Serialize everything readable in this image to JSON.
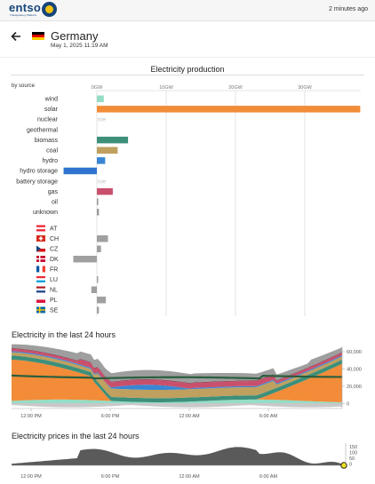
{
  "header": {
    "logo_text": "entso",
    "logo_tagline": "Transparency Platform",
    "updated": "2 minutes ago"
  },
  "zone": {
    "name": "Germany",
    "datetime": "May 1, 2025 11:19 AM",
    "flag": "de-flag"
  },
  "production": {
    "title": "Electricity production",
    "by_source_label": "by source",
    "ticks": [
      "0GW",
      "10GW",
      "20GW",
      "30GW"
    ],
    "nodata_label": "n/e",
    "sources": [
      {
        "name": "wind",
        "value": 1.0,
        "color": "#96dcc6"
      },
      {
        "name": "solar",
        "value": 38.0,
        "color": "#f28c38"
      },
      {
        "name": "nuclear",
        "value": null,
        "color": "#b0b0b0"
      },
      {
        "name": "geothermal",
        "value": 0,
        "color": "#b0b0b0"
      },
      {
        "name": "biomass",
        "value": 4.5,
        "color": "#3d8f7a"
      },
      {
        "name": "coal",
        "value": 3.0,
        "color": "#bfa05f"
      },
      {
        "name": "hydro",
        "value": 1.2,
        "color": "#3a86d4"
      },
      {
        "name": "hydro storage",
        "value": -4.8,
        "color": "#2f74d0"
      },
      {
        "name": "battery storage",
        "value": null,
        "color": "#b0b0b0"
      },
      {
        "name": "gas",
        "value": 2.3,
        "color": "#c9506c"
      },
      {
        "name": "oil",
        "value": 0.2,
        "color": "#9a9a9a"
      },
      {
        "name": "unknown",
        "value": 0.3,
        "color": "#9a9a9a"
      }
    ],
    "exchanges": [
      {
        "code": "AT",
        "value": 0,
        "flag": "at-flag"
      },
      {
        "code": "CH",
        "value": 1.6,
        "flag": "ch-flag"
      },
      {
        "code": "CZ",
        "value": 0.6,
        "flag": "cz-flag"
      },
      {
        "code": "DK",
        "value": -3.4,
        "flag": "dk-flag"
      },
      {
        "code": "FR",
        "value": 0,
        "flag": "fr-flag"
      },
      {
        "code": "LU",
        "value": 0.1,
        "flag": "lu-flag"
      },
      {
        "code": "NL",
        "value": -0.8,
        "flag": "nl-flag"
      },
      {
        "code": "PL",
        "value": 1.3,
        "flag": "pl-flag"
      },
      {
        "code": "SE",
        "value": 0.3,
        "flag": "se-flag"
      }
    ]
  },
  "history": {
    "title": "Electricity in the last 24 hours",
    "x_labels": [
      "12:00 PM",
      "6:00 PM",
      "12:00 AM",
      "6:00 AM"
    ],
    "y_labels": [
      "60,000",
      "40,000",
      "20,000",
      "0"
    ],
    "colors": {
      "solar": "#f28c38",
      "biomass": "#3d8f7a",
      "coal": "#bfa05f",
      "hydro": "#3a86d4",
      "gas": "#c9506c",
      "wind": "#96dcc6",
      "imports": "#9e9e9e",
      "oil": "#7a3a4a"
    }
  },
  "prices": {
    "title": "Electricity prices in the last 24 hours",
    "x_labels": [
      "12:00 PM",
      "6:00 PM",
      "12:00 AM",
      "6:00 AM"
    ],
    "y_labels": [
      "150",
      "100",
      "50",
      "0"
    ],
    "fill": "#5a5a5a",
    "marker": "#f2e21a"
  }
}
